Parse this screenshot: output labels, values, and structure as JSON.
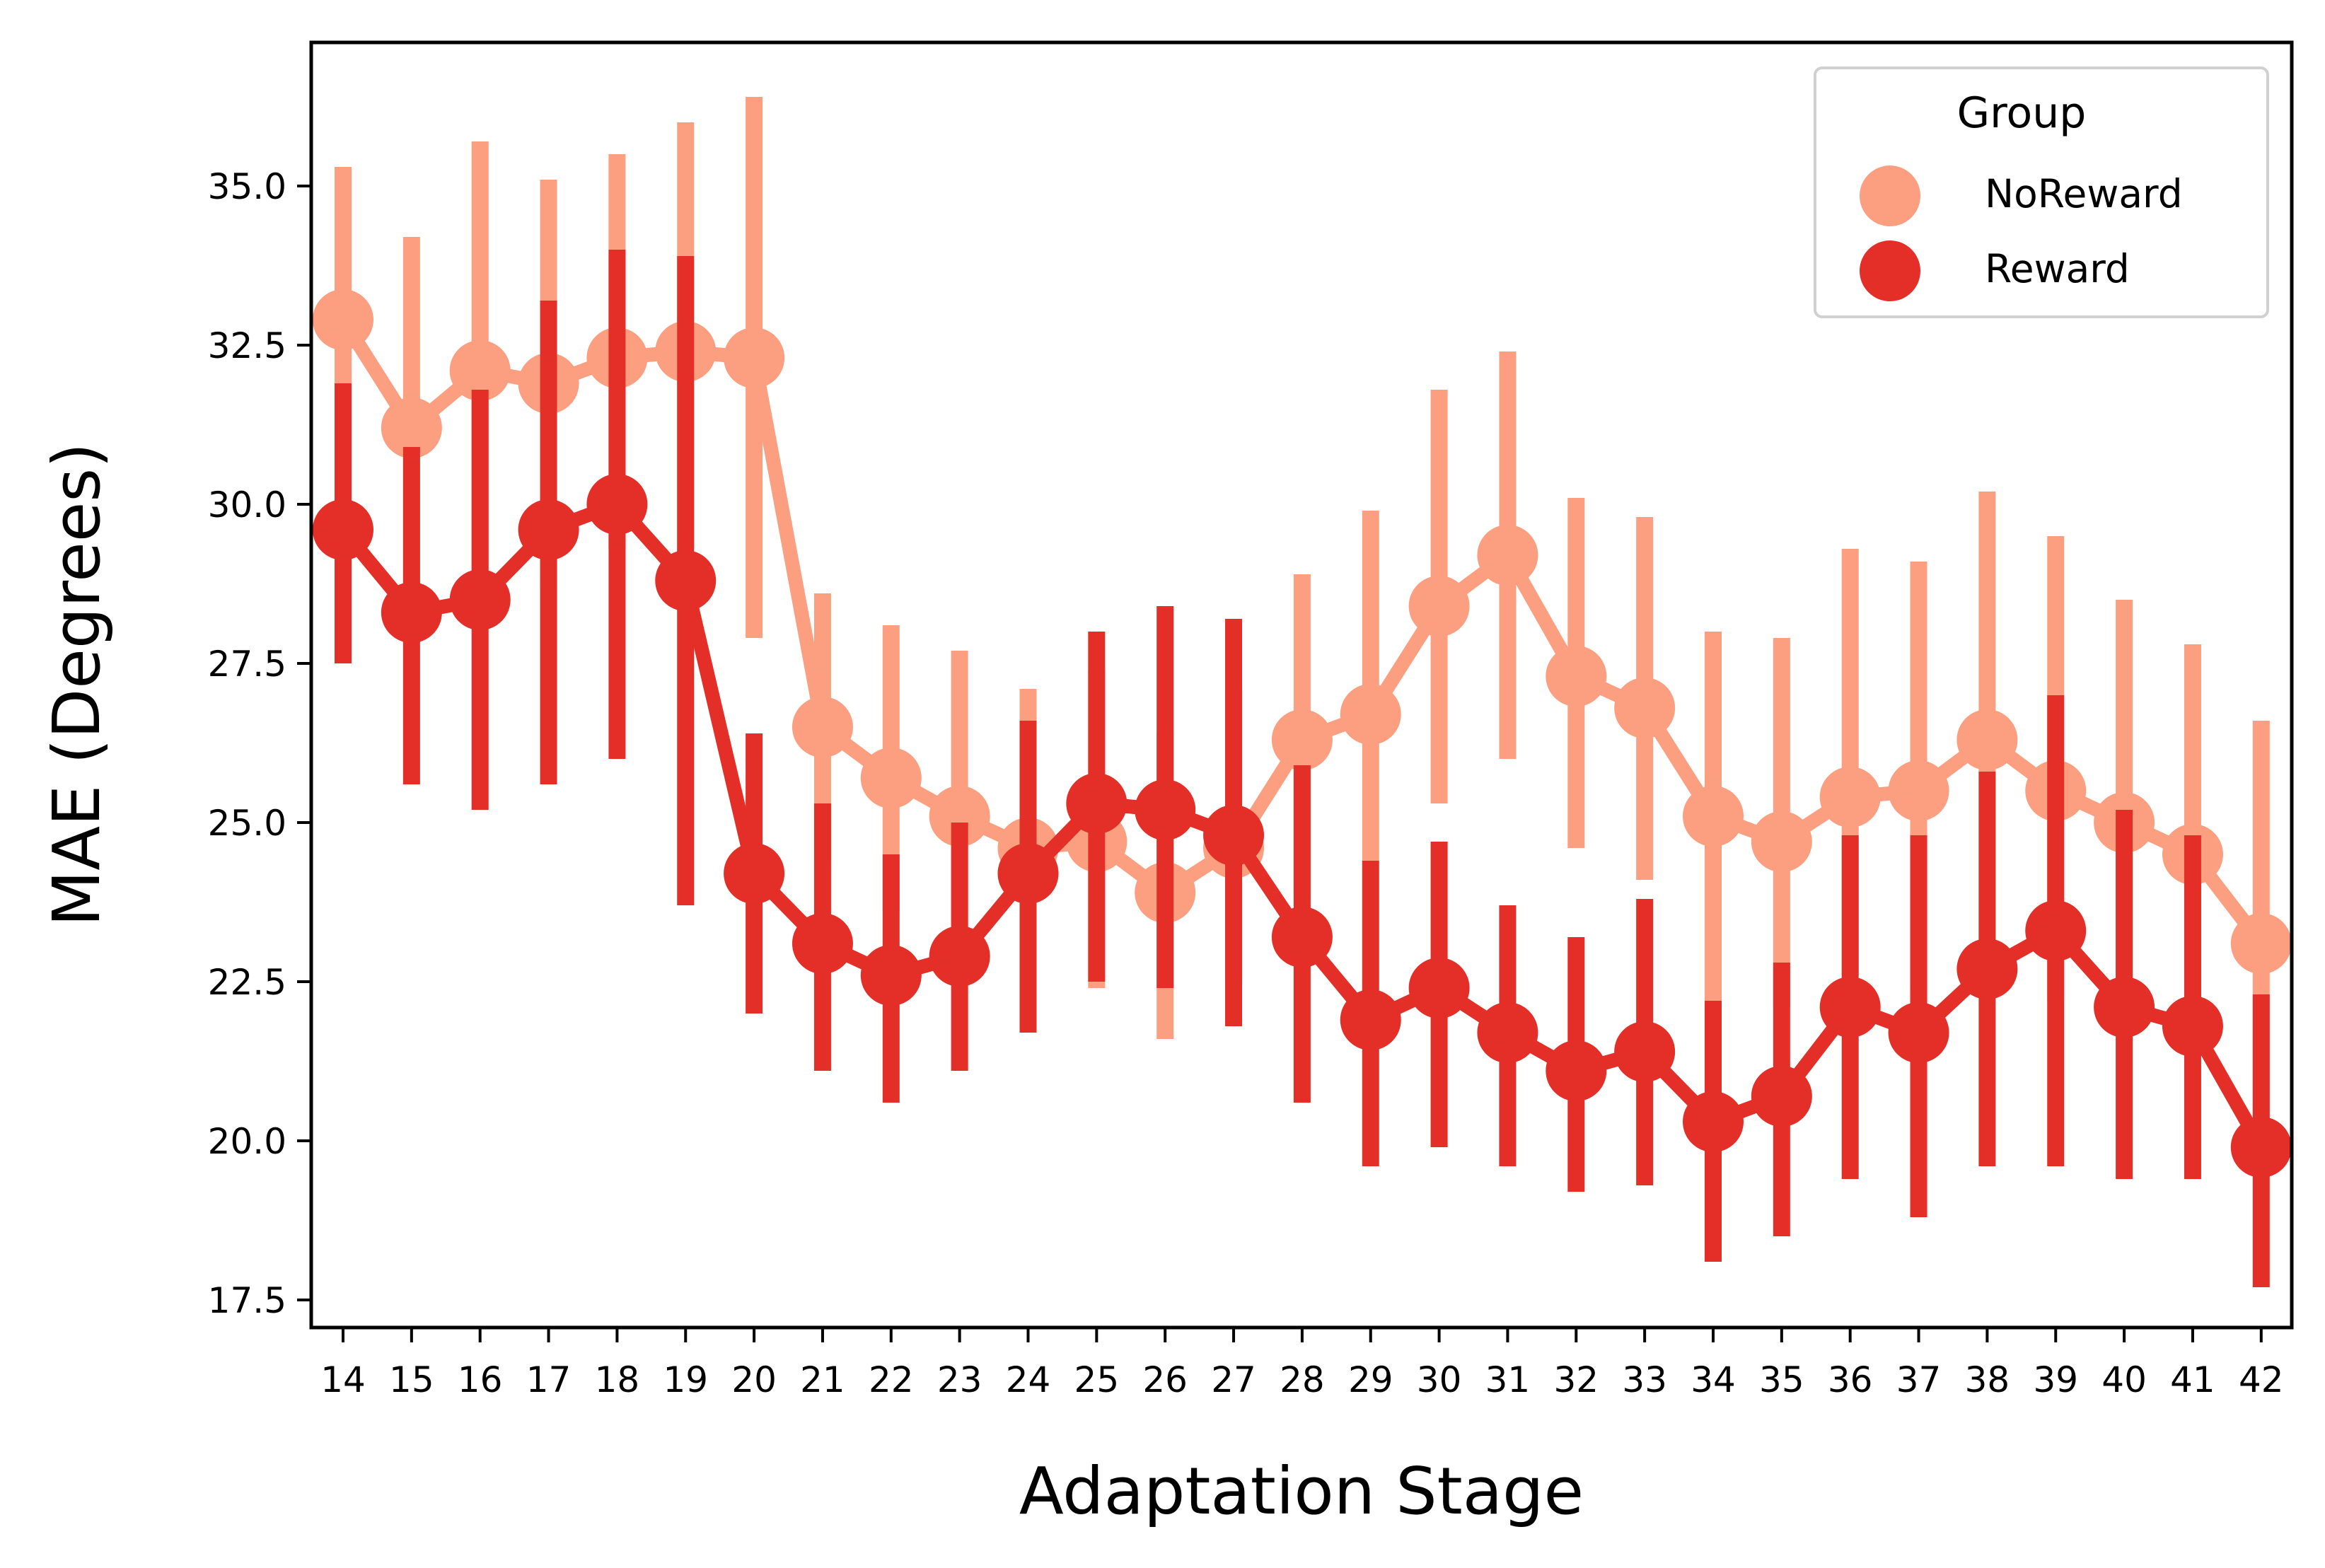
{
  "chart_data": {
    "type": "line",
    "title": "",
    "xlabel": "Adaptation Stage",
    "ylabel": "MAE (Degrees)",
    "ylim": [
      17.0,
      37.2
    ],
    "yticks": [
      "17.5",
      "20.0",
      "22.5",
      "25.0",
      "27.5",
      "30.0",
      "32.5",
      "35.0"
    ],
    "categories": [
      "14",
      "15",
      "16",
      "17",
      "18",
      "19",
      "20",
      "21",
      "22",
      "23",
      "24",
      "25",
      "26",
      "27",
      "28",
      "29",
      "30",
      "31",
      "32",
      "33",
      "34",
      "35",
      "36",
      "37",
      "38",
      "39",
      "40",
      "41",
      "42"
    ],
    "legend": {
      "title": "Group",
      "position": "top-right"
    },
    "grid": false,
    "series": [
      {
        "name": "NoReward",
        "color": "#fb9f80",
        "values": [
          32.9,
          31.2,
          32.1,
          31.9,
          32.3,
          32.4,
          32.3,
          26.5,
          25.7,
          25.1,
          24.6,
          24.7,
          23.9,
          24.6,
          26.3,
          26.7,
          28.4,
          29.2,
          27.3,
          26.8,
          25.1,
          24.7,
          25.4,
          25.5,
          26.3,
          25.5,
          25.0,
          24.5,
          23.1
        ],
        "err_low": [
          30.5,
          28.4,
          28.6,
          28.7,
          29.3,
          28.8,
          27.9,
          24.4,
          23.6,
          22.8,
          22.2,
          22.4,
          21.6,
          22.5,
          23.8,
          24.4,
          25.3,
          26.0,
          24.6,
          24.1,
          22.2,
          22.1,
          22.6,
          22.4,
          22.4,
          22.2,
          21.8,
          21.7,
          19.9
        ],
        "err_high": [
          35.3,
          34.2,
          35.7,
          35.1,
          35.5,
          36.0,
          36.4,
          28.6,
          28.1,
          27.7,
          27.1,
          27.4,
          26.4,
          27.1,
          28.9,
          29.9,
          31.8,
          32.4,
          30.1,
          29.8,
          28.0,
          27.9,
          29.3,
          29.1,
          30.2,
          29.5,
          28.5,
          27.8,
          26.6
        ]
      },
      {
        "name": "Reward",
        "color": "#e32f27",
        "values": [
          29.6,
          28.3,
          28.5,
          29.6,
          30.0,
          28.8,
          24.2,
          23.1,
          22.6,
          22.9,
          24.2,
          25.3,
          25.2,
          24.8,
          23.2,
          21.9,
          22.4,
          21.7,
          21.1,
          21.4,
          20.3,
          20.7,
          22.1,
          21.7,
          22.7,
          23.3,
          22.1,
          21.8,
          19.9
        ],
        "err_low": [
          27.5,
          25.6,
          25.2,
          25.6,
          26.0,
          23.7,
          22.0,
          21.1,
          20.6,
          21.1,
          21.7,
          22.5,
          22.4,
          21.8,
          20.6,
          19.6,
          19.9,
          19.6,
          19.2,
          19.3,
          18.1,
          18.5,
          19.4,
          18.8,
          19.6,
          19.6,
          19.4,
          19.4,
          17.7
        ],
        "err_high": [
          31.9,
          30.9,
          31.8,
          33.2,
          34.0,
          33.9,
          26.4,
          25.3,
          24.5,
          25.0,
          26.6,
          28.0,
          28.4,
          28.2,
          25.9,
          24.4,
          24.7,
          23.7,
          23.2,
          23.8,
          22.2,
          22.8,
          24.8,
          24.8,
          25.8,
          27.0,
          25.2,
          24.8,
          22.3
        ]
      }
    ]
  }
}
